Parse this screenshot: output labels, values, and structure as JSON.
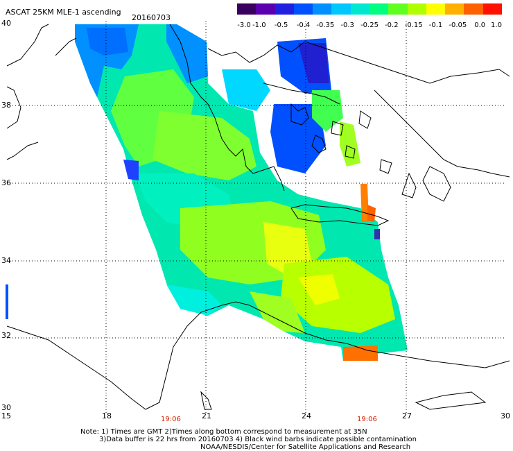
{
  "header": {
    "title": "ASCAT 25KM MLE-1 ascending",
    "date": "20160703"
  },
  "colorbar": {
    "labels": [
      "-3.0",
      "-1.0",
      "-0.5",
      "-0.4",
      "-0.35",
      "-0.3",
      "-0.25",
      "-0.2",
      "-0.15",
      "-0.1",
      "-0.05",
      "0.0",
      "1.0"
    ],
    "colors": [
      "#3a0060",
      "#5a00b0",
      "#2020e0",
      "#0050ff",
      "#0090ff",
      "#00c8ff",
      "#00e8d0",
      "#00ff80",
      "#60ff20",
      "#b0ff00",
      "#ffff00",
      "#ffb000",
      "#ff6000",
      "#ff1000"
    ]
  },
  "axes": {
    "lat_labels": [
      "40",
      "38",
      "36",
      "34",
      "32",
      "30"
    ],
    "lon_labels": [
      "15",
      "18",
      "21",
      "24",
      "27",
      "30"
    ],
    "time_labels": [
      "19:06",
      "19:06"
    ]
  },
  "notes": {
    "line1": "Note: 1) Times are GMT 2)Times along bottom correspond to measurement at 35N",
    "line2": "3)Data buffer is 22 hrs from 20160703 4) Black wind barbs indicate possible contamination",
    "line3": "NOAA/NESDIS/Center for Satellite Applications and Research"
  }
}
